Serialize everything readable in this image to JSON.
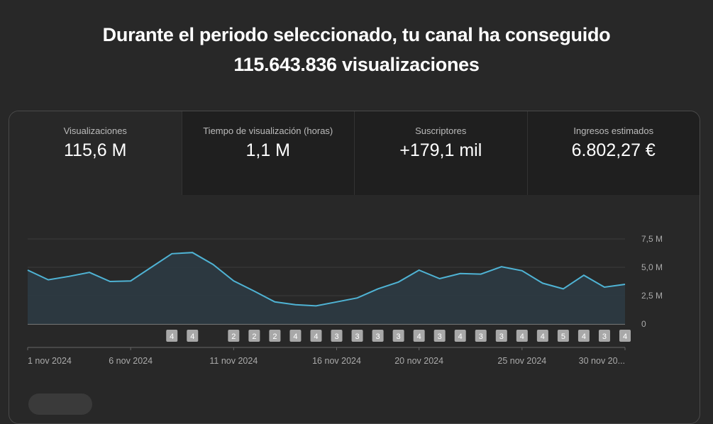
{
  "headline": {
    "line1": "Durante el periodo seleccionado, tu canal ha conseguido",
    "line2": "115.643.836 visualizaciones"
  },
  "metrics": [
    {
      "label": "Visualizaciones",
      "value": "115,6 M"
    },
    {
      "label": "Tiempo de visualización (horas)",
      "value": "1,1 M"
    },
    {
      "label": "Suscriptores",
      "value": "+179,1 mil"
    },
    {
      "label": "Ingresos estimados",
      "value": "6.802,27 €"
    }
  ],
  "colors": {
    "line": "#4fb3d4",
    "fill": "#2c3a43"
  },
  "chart_data": {
    "type": "area",
    "title": "Visualizaciones",
    "x": [
      "1 nov",
      "2 nov",
      "3 nov",
      "4 nov",
      "5 nov",
      "6 nov",
      "7 nov",
      "8 nov",
      "9 nov",
      "10 nov",
      "11 nov",
      "12 nov",
      "13 nov",
      "14 nov",
      "15 nov",
      "16 nov",
      "17 nov",
      "18 nov",
      "19 nov",
      "20 nov",
      "21 nov",
      "22 nov",
      "23 nov",
      "24 nov",
      "25 nov",
      "26 nov",
      "27 nov",
      "28 nov",
      "29 nov",
      "30 nov"
    ],
    "values": [
      4.75,
      3.9,
      4.2,
      4.55,
      3.75,
      3.8,
      5.0,
      6.2,
      6.3,
      5.25,
      3.8,
      2.9,
      1.95,
      1.7,
      1.6,
      1.95,
      2.3,
      3.1,
      3.7,
      4.75,
      4.0,
      4.45,
      4.4,
      5.05,
      4.7,
      3.6,
      3.1,
      4.3,
      3.25,
      3.5
    ],
    "unit": "M",
    "ylim": [
      0,
      7.5
    ],
    "yticks": [
      "0",
      "2,5 M",
      "5,0 M",
      "7,5 M"
    ],
    "xtick_labels": [
      {
        "i": 0,
        "label": "1 nov 2024"
      },
      {
        "i": 5,
        "label": "6 nov 2024"
      },
      {
        "i": 10,
        "label": "11 nov 2024"
      },
      {
        "i": 15,
        "label": "16 nov 2024"
      },
      {
        "i": 19,
        "label": "20 nov 2024"
      },
      {
        "i": 24,
        "label": "25 nov 2024"
      },
      {
        "i": 29,
        "label": "30 nov 20..."
      }
    ],
    "markers": [
      {
        "i": 7,
        "n": "4"
      },
      {
        "i": 8,
        "n": "4"
      },
      {
        "i": 10,
        "n": "2"
      },
      {
        "i": 11,
        "n": "2"
      },
      {
        "i": 12,
        "n": "2"
      },
      {
        "i": 13,
        "n": "4"
      },
      {
        "i": 14,
        "n": "4"
      },
      {
        "i": 15,
        "n": "3"
      },
      {
        "i": 16,
        "n": "3"
      },
      {
        "i": 17,
        "n": "3"
      },
      {
        "i": 18,
        "n": "3"
      },
      {
        "i": 19,
        "n": "4"
      },
      {
        "i": 20,
        "n": "3"
      },
      {
        "i": 21,
        "n": "4"
      },
      {
        "i": 22,
        "n": "3"
      },
      {
        "i": 23,
        "n": "3"
      },
      {
        "i": 24,
        "n": "4"
      },
      {
        "i": 25,
        "n": "4"
      },
      {
        "i": 26,
        "n": "5"
      },
      {
        "i": 27,
        "n": "4"
      },
      {
        "i": 28,
        "n": "3"
      },
      {
        "i": 29,
        "n": "4"
      }
    ]
  }
}
